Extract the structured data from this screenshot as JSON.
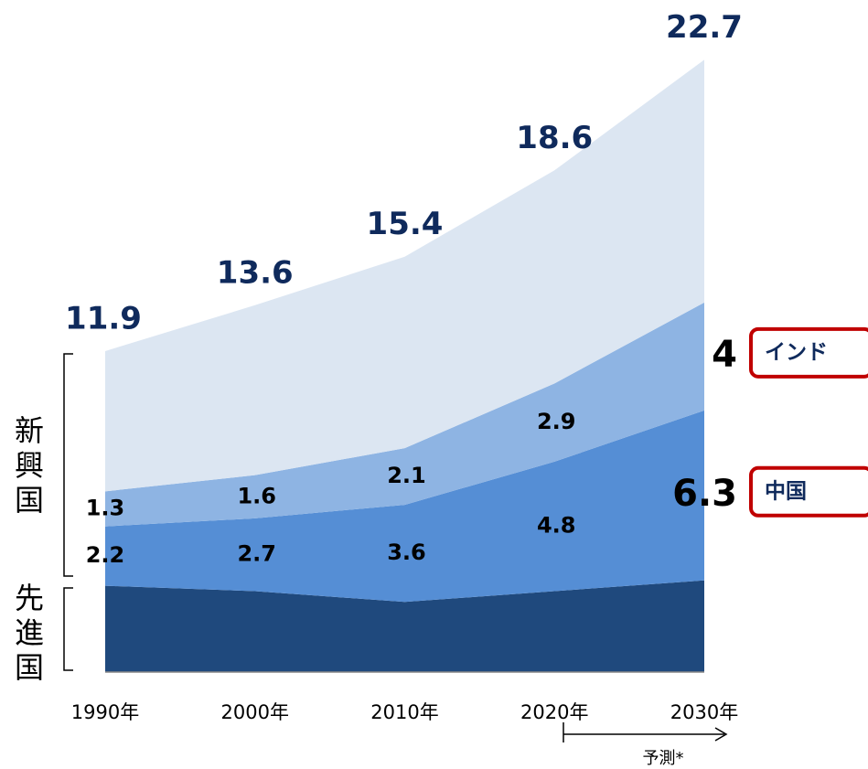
{
  "chart_data": {
    "type": "stacked_area",
    "categories": [
      "1990年",
      "2000年",
      "2010年",
      "2020年",
      "2030年"
    ],
    "series": [
      {
        "name": "先進国",
        "color": "#1f497d",
        "values": [
          3.2,
          3.0,
          2.6,
          3.0,
          3.4
        ]
      },
      {
        "name": "中国",
        "color": "#558ed5",
        "values": [
          2.2,
          2.7,
          3.6,
          4.8,
          6.3
        ]
      },
      {
        "name": "インド",
        "color": "#8eb4e3",
        "values": [
          1.3,
          1.6,
          2.1,
          2.9,
          4.0
        ]
      },
      {
        "color": "#dce6f2",
        "values": [
          5.2,
          6.3,
          7.1,
          7.9,
          9.0
        ]
      }
    ],
    "totals": [
      11.9,
      13.6,
      15.4,
      18.6,
      22.7
    ],
    "group_label": "新興国",
    "annotation": "予測*",
    "ylim": [
      0,
      24
    ]
  }
}
